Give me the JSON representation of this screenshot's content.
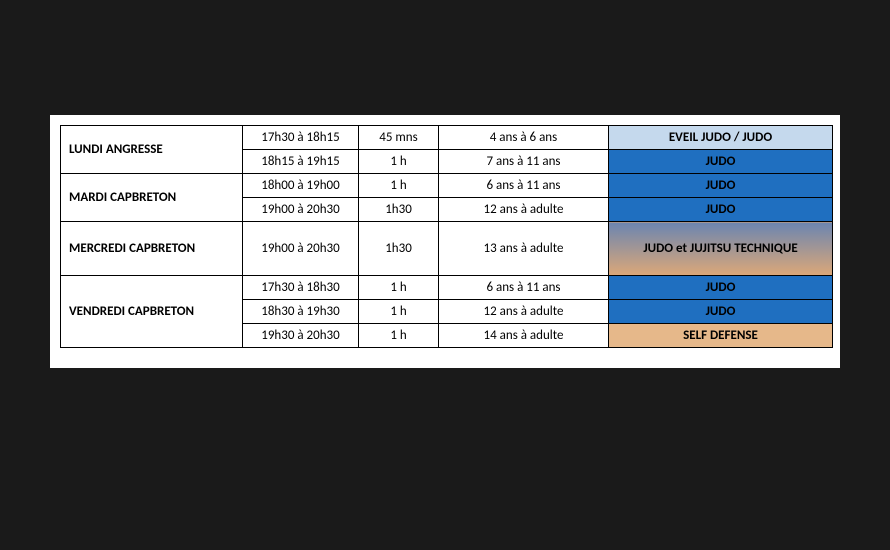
{
  "colors": {
    "page_bg": "#1a1a1a",
    "paper_bg": "#ffffff",
    "border": "#000000",
    "light_blue": "#c5d9ed",
    "blue": "#1f6fc0",
    "tan": "#e6b88a",
    "grad_top": "#6b85b0",
    "grad_bottom": "#dca878"
  },
  "schedule": [
    {
      "day": "LUNDI ANGRESSE",
      "sessions": [
        {
          "time": "17h30 à 18h15",
          "duration": "45 mns",
          "age": "4 ans à 6 ans",
          "activity": "EVEIL JUDO / JUDO",
          "bg": "light_blue"
        },
        {
          "time": "18h15 à 19h15",
          "duration": "1 h",
          "age": "7 ans à 11 ans",
          "activity": "JUDO",
          "bg": "blue"
        }
      ]
    },
    {
      "day": "MARDI CAPBRETON",
      "sessions": [
        {
          "time": "18h00 à 19h00",
          "duration": "1 h",
          "age": "6 ans à 11 ans",
          "activity": "JUDO",
          "bg": "blue"
        },
        {
          "time": "19h00 à 20h30",
          "duration": "1h30",
          "age": "12 ans à adulte",
          "activity": "JUDO",
          "bg": "blue"
        }
      ]
    },
    {
      "day": "MERCREDI CAPBRETON",
      "sessions": [
        {
          "time": "19h00 à 20h30",
          "duration": "1h30",
          "age": "13 ans à adulte",
          "activity": "JUDO et JUJITSU TECHNIQUE",
          "bg": "gradient",
          "tall": true
        }
      ]
    },
    {
      "day": "VENDREDI CAPBRETON",
      "sessions": [
        {
          "time": "17h30 à 18h30",
          "duration": "1 h",
          "age": "6 ans à 11 ans",
          "activity": "JUDO",
          "bg": "blue"
        },
        {
          "time": "18h30 à 19h30",
          "duration": "1 h",
          "age": "12 ans à adulte",
          "activity": "JUDO",
          "bg": "blue"
        },
        {
          "time": "19h30 à 20h30",
          "duration": "1 h",
          "age": "14 ans à adulte",
          "activity": "SELF DEFENSE",
          "bg": "tan"
        }
      ]
    }
  ]
}
